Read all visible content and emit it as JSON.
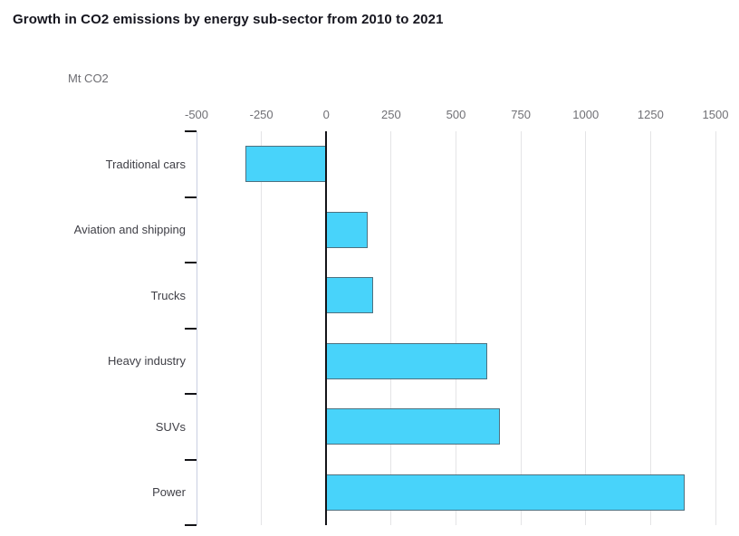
{
  "title": "Growth in CO2 emissions by energy sub-sector from 2010 to 2021",
  "chart_data": {
    "type": "bar",
    "orientation": "horizontal",
    "title": "Growth in CO2 emissions by energy sub-sector from 2010 to 2021",
    "unit_label": "Mt CO2",
    "categories": [
      "Traditional cars",
      "Aviation and shipping",
      "Trucks",
      "Heavy industry",
      "SUVs",
      "Power"
    ],
    "values": [
      -310,
      160,
      180,
      620,
      670,
      1380
    ],
    "xlim": [
      -500,
      1500
    ],
    "xticks": [
      -500,
      -250,
      0,
      250,
      500,
      750,
      1000,
      1250,
      1500
    ],
    "grid": true,
    "legend": "none",
    "colors": {
      "bar_fill": "#48d3fa",
      "bar_border": "#4e7180",
      "gridline": "#e4e4e6",
      "axis_line": "#c9cfe1",
      "zero_line": "#141418",
      "tick_text": "#707075",
      "category_text": "#3f3f46",
      "title_text": "#15151e"
    }
  }
}
